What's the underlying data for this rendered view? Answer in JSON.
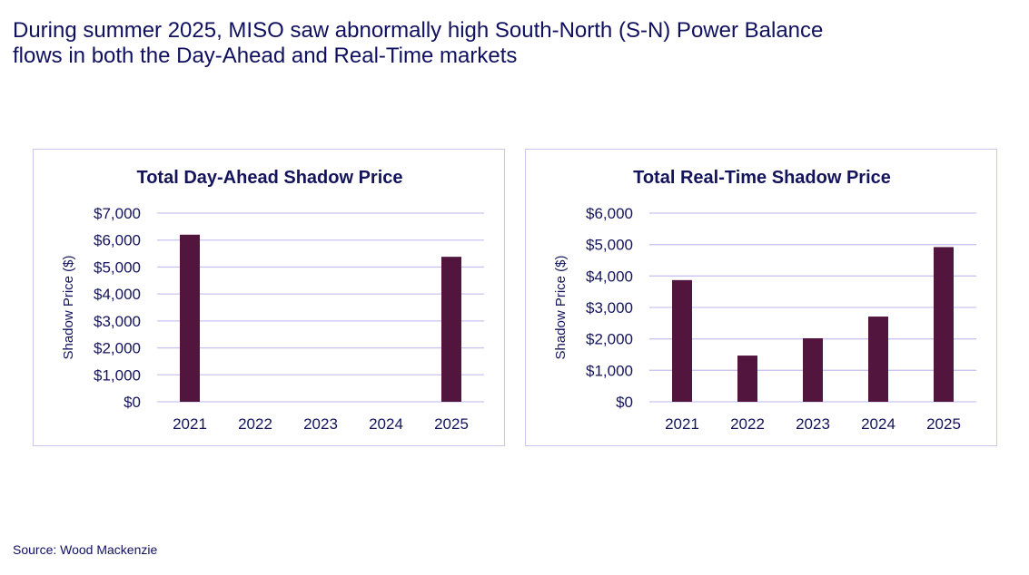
{
  "headline": {
    "line1": "During summer 2025, MISO saw abnormally high South-North (S-N) Power Balance",
    "line2": "flows in both the Day-Ahead and Real-Time markets"
  },
  "source": "Source: Wood Mackenzie",
  "colors": {
    "bar": "#52163e",
    "grid": "#c9c5f0",
    "text": "#14145c"
  },
  "chart_data": [
    {
      "type": "bar",
      "title": "Total Day-Ahead Shadow Price",
      "xlabel": "",
      "ylabel": "Shadow Price ($)",
      "categories": [
        "2021",
        "2022",
        "2023",
        "2024",
        "2025"
      ],
      "values": [
        6200,
        0,
        0,
        0,
        5380
      ],
      "ylim": [
        0,
        7000
      ],
      "yticks": [
        0,
        1000,
        2000,
        3000,
        4000,
        5000,
        6000,
        7000
      ],
      "ytick_labels": [
        "$0",
        "$1,000",
        "$2,000",
        "$3,000",
        "$4,000",
        "$5,000",
        "$6,000",
        "$7,000"
      ],
      "grid": true,
      "legend": "none"
    },
    {
      "type": "bar",
      "title": "Total Real-Time Shadow Price",
      "xlabel": "",
      "ylabel": "Shadow Price ($)",
      "categories": [
        "2021",
        "2022",
        "2023",
        "2024",
        "2025"
      ],
      "values": [
        3870,
        1470,
        2020,
        2710,
        4920
      ],
      "ylim": [
        0,
        6000
      ],
      "yticks": [
        0,
        1000,
        2000,
        3000,
        4000,
        5000,
        6000
      ],
      "ytick_labels": [
        "$0",
        "$1,000",
        "$2,000",
        "$3,000",
        "$4,000",
        "$5,000",
        "$6,000"
      ],
      "grid": true,
      "legend": "none"
    }
  ]
}
